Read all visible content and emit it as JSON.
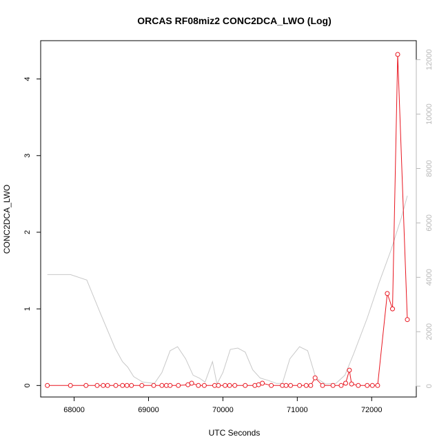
{
  "chart_data": {
    "type": "line",
    "title": "ORCAS RF08miz2 CONC2DCA_LWO (Log)",
    "xlabel": "UTC Seconds",
    "ylabel": "CONC2DCA_LWO",
    "xlim": [
      67550,
      72600
    ],
    "ylim": [
      -0.15,
      4.5
    ],
    "y2lim": [
      -400,
      12700
    ],
    "x_ticks": [
      "68000",
      "69000",
      "70000",
      "71000",
      "72000"
    ],
    "y_ticks": [
      "0",
      "1",
      "2",
      "3",
      "4"
    ],
    "y2_ticks": [
      "0",
      "2000",
      "4000",
      "6000",
      "8000",
      "10000",
      "12000"
    ],
    "grid": false,
    "series": [
      {
        "color": "#e8141e",
        "axis": "left",
        "marker": "circle",
        "x": [
          67640,
          67950,
          68160,
          68310,
          68390,
          68450,
          68560,
          68650,
          68710,
          68770,
          68910,
          69070,
          69180,
          69240,
          69290,
          69400,
          69530,
          69580,
          69670,
          69750,
          69890,
          69940,
          70030,
          70090,
          70160,
          70300,
          70430,
          70480,
          70530,
          70650,
          70800,
          70850,
          70910,
          71030,
          71120,
          71180,
          71240,
          71340,
          71480,
          71590,
          71650,
          71700,
          71730,
          71820,
          71940,
          72010,
          72080,
          72210,
          72280,
          72350,
          72480
        ],
        "y": [
          0,
          0,
          0,
          0,
          0,
          0,
          0,
          0,
          0,
          0,
          0,
          0,
          0,
          0,
          0,
          0,
          0.01,
          0.03,
          0,
          0,
          0,
          0,
          0,
          0,
          0,
          0,
          0,
          0.01,
          0.03,
          0,
          0,
          0,
          0,
          0,
          0,
          0,
          0.1,
          0,
          0,
          0,
          0.03,
          0.2,
          0.02,
          0,
          0,
          0,
          0,
          1.2,
          1,
          4.32,
          0.86
        ]
      },
      {
        "color": "#c8c8c8",
        "axis": "right",
        "marker": "none",
        "x": [
          67640,
          67950,
          68170,
          68350,
          68550,
          68650,
          68720,
          68800,
          68920,
          69080,
          69180,
          69290,
          69390,
          69500,
          69600,
          69680,
          69760,
          69860,
          69920,
          70000,
          70100,
          70200,
          70300,
          70400,
          70500,
          70620,
          70720,
          70800,
          70900,
          71030,
          71140,
          71250,
          71380,
          71520,
          71640,
          71760,
          71940,
          72100,
          72260,
          72400,
          72480
        ],
        "y": [
          4100,
          4100,
          3900,
          2700,
          1400,
          900,
          700,
          350,
          150,
          100,
          500,
          1300,
          1450,
          1000,
          400,
          300,
          150,
          900,
          80,
          500,
          1350,
          1400,
          1250,
          600,
          300,
          200,
          100,
          100,
          1000,
          1450,
          1300,
          300,
          80,
          100,
          400,
          1200,
          2500,
          3800,
          5000,
          6200,
          7000
        ]
      }
    ]
  }
}
